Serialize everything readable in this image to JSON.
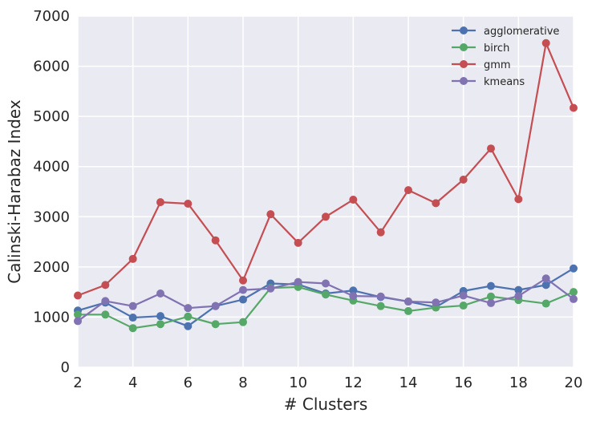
{
  "chart_data": {
    "type": "line",
    "title": "",
    "xlabel": "# Clusters",
    "ylabel": "Calinski-Harabaz Index",
    "xlim": [
      2,
      20
    ],
    "ylim": [
      0,
      7000
    ],
    "xticks": [
      2,
      4,
      6,
      8,
      10,
      12,
      14,
      16,
      18,
      20
    ],
    "yticks": [
      0,
      1000,
      2000,
      3000,
      4000,
      5000,
      6000,
      7000
    ],
    "grid": true,
    "legend_position": "top-right",
    "x": [
      2,
      3,
      4,
      5,
      6,
      7,
      8,
      9,
      10,
      11,
      12,
      13,
      14,
      15,
      16,
      17,
      18,
      19,
      20
    ],
    "series": [
      {
        "name": "agglomerative",
        "color": "#4c72b0",
        "values": [
          1130,
          1290,
          990,
          1020,
          820,
          1220,
          1350,
          1670,
          1650,
          1470,
          1530,
          1400,
          1310,
          1200,
          1520,
          1620,
          1540,
          1640,
          1970
        ]
      },
      {
        "name": "birch",
        "color": "#55a868",
        "values": [
          1050,
          1050,
          780,
          860,
          1010,
          860,
          900,
          1580,
          1600,
          1450,
          1330,
          1220,
          1120,
          1190,
          1230,
          1410,
          1340,
          1270,
          1500
        ]
      },
      {
        "name": "gmm",
        "color": "#c44e52",
        "values": [
          1430,
          1640,
          2160,
          3290,
          3260,
          2530,
          1730,
          3050,
          2480,
          3000,
          3340,
          2690,
          3530,
          3270,
          3740,
          4360,
          3350,
          6460,
          5170
        ]
      },
      {
        "name": "kmeans",
        "color": "#8172b2",
        "values": [
          920,
          1320,
          1220,
          1470,
          1180,
          1220,
          1540,
          1570,
          1700,
          1670,
          1420,
          1410,
          1310,
          1290,
          1430,
          1280,
          1420,
          1770,
          1360
        ]
      }
    ]
  }
}
